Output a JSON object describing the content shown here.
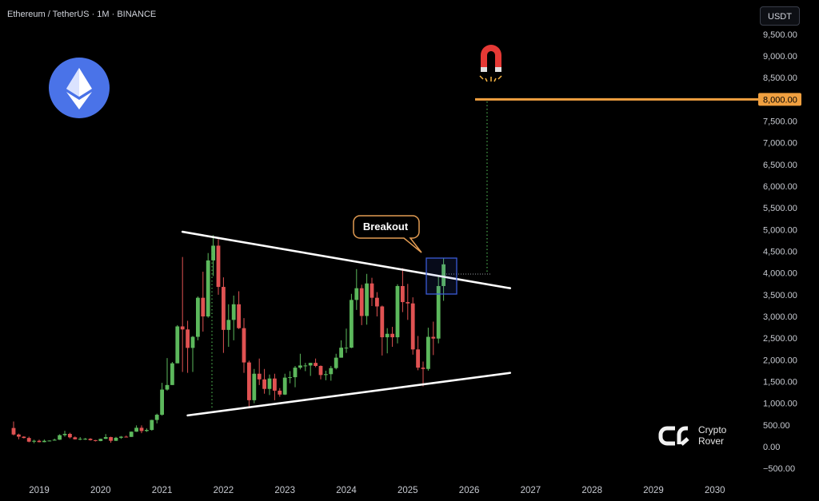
{
  "header": {
    "title": "Ethereum / TetherUS · 1M · BINANCE",
    "currency_button": "USDT"
  },
  "branding": {
    "logo_line1": "Crypto",
    "logo_line2": "Rover",
    "eth_icon": "ethereum-logo-icon",
    "magnet_icon": "magnet-icon"
  },
  "colors": {
    "up": "#5cb85c",
    "down": "#e05252",
    "trendline": "#ffffff",
    "target": "#f0a040",
    "eth_badge": "#4a73e8",
    "breakout_border": "#e39c53",
    "highlight_box": "#3b5bd6",
    "projection": "#4caf50"
  },
  "chart_data": {
    "type": "candlestick",
    "title": "Ethereum / TetherUS · 1M · BINANCE",
    "x_unit": "month",
    "ylim": [
      -750,
      9900
    ],
    "yticks": [
      "9,500.00",
      "9,000.00",
      "8,500.00",
      "7,500.00",
      "7,000.00",
      "6,500.00",
      "6,000.00",
      "5,500.00",
      "5,000.00",
      "4,500.00",
      "4,000.00",
      "3,500.00",
      "3,000.00",
      "2,500.00",
      "2,000.00",
      "1,500.00",
      "1,000.00",
      "500.00",
      "0.00",
      "−500.00"
    ],
    "ytick_values": [
      9500,
      9000,
      8500,
      7500,
      7000,
      6500,
      6000,
      5500,
      5000,
      4500,
      4000,
      3500,
      3000,
      2500,
      2000,
      1500,
      1000,
      500,
      0,
      -500
    ],
    "xticks": [
      "2019",
      "2020",
      "2021",
      "2022",
      "2023",
      "2024",
      "2025",
      "2026",
      "2027",
      "2028",
      "2029",
      "2030"
    ],
    "xtick_values": [
      "2019-01",
      "2020-01",
      "2021-01",
      "2022-01",
      "2023-01",
      "2024-01",
      "2025-01",
      "2026-01",
      "2027-01",
      "2028-01",
      "2029-01",
      "2030-01"
    ],
    "target_level": {
      "value": 8000,
      "label": "8,000.00"
    },
    "annotation": "Breakout",
    "trendlines": [
      {
        "name": "upper",
        "from": [
          "2021-05",
          4950
        ],
        "to": [
          "2026-09",
          3650
        ]
      },
      {
        "name": "lower",
        "from": [
          "2021-06",
          720
        ],
        "to": [
          "2026-09",
          1700
        ]
      }
    ],
    "candles": [
      {
        "t": "2018-08",
        "o": 430,
        "h": 580,
        "l": 260,
        "c": 280
      },
      {
        "t": "2018-09",
        "o": 280,
        "h": 300,
        "l": 170,
        "c": 230
      },
      {
        "t": "2018-10",
        "o": 230,
        "h": 240,
        "l": 190,
        "c": 200
      },
      {
        "t": "2018-11",
        "o": 200,
        "h": 230,
        "l": 100,
        "c": 115
      },
      {
        "t": "2018-12",
        "o": 115,
        "h": 160,
        "l": 80,
        "c": 135
      },
      {
        "t": "2019-01",
        "o": 135,
        "h": 160,
        "l": 100,
        "c": 105
      },
      {
        "t": "2019-02",
        "o": 105,
        "h": 165,
        "l": 100,
        "c": 135
      },
      {
        "t": "2019-03",
        "o": 135,
        "h": 145,
        "l": 125,
        "c": 140
      },
      {
        "t": "2019-04",
        "o": 140,
        "h": 185,
        "l": 140,
        "c": 160
      },
      {
        "t": "2019-05",
        "o": 160,
        "h": 285,
        "l": 155,
        "c": 265
      },
      {
        "t": "2019-06",
        "o": 265,
        "h": 365,
        "l": 230,
        "c": 295
      },
      {
        "t": "2019-07",
        "o": 295,
        "h": 320,
        "l": 190,
        "c": 215
      },
      {
        "t": "2019-08",
        "o": 215,
        "h": 235,
        "l": 165,
        "c": 170
      },
      {
        "t": "2019-09",
        "o": 170,
        "h": 220,
        "l": 150,
        "c": 180
      },
      {
        "t": "2019-10",
        "o": 180,
        "h": 200,
        "l": 155,
        "c": 182
      },
      {
        "t": "2019-11",
        "o": 182,
        "h": 195,
        "l": 140,
        "c": 150
      },
      {
        "t": "2019-12",
        "o": 150,
        "h": 155,
        "l": 120,
        "c": 130
      },
      {
        "t": "2020-01",
        "o": 130,
        "h": 185,
        "l": 125,
        "c": 180
      },
      {
        "t": "2020-02",
        "o": 180,
        "h": 290,
        "l": 175,
        "c": 220
      },
      {
        "t": "2020-03",
        "o": 220,
        "h": 230,
        "l": 90,
        "c": 135
      },
      {
        "t": "2020-04",
        "o": 135,
        "h": 225,
        "l": 130,
        "c": 205
      },
      {
        "t": "2020-05",
        "o": 205,
        "h": 245,
        "l": 180,
        "c": 230
      },
      {
        "t": "2020-06",
        "o": 230,
        "h": 255,
        "l": 215,
        "c": 225
      },
      {
        "t": "2020-07",
        "o": 225,
        "h": 350,
        "l": 225,
        "c": 345
      },
      {
        "t": "2020-08",
        "o": 345,
        "h": 490,
        "l": 340,
        "c": 435
      },
      {
        "t": "2020-09",
        "o": 435,
        "h": 490,
        "l": 310,
        "c": 360
      },
      {
        "t": "2020-10",
        "o": 360,
        "h": 420,
        "l": 340,
        "c": 385
      },
      {
        "t": "2020-11",
        "o": 385,
        "h": 620,
        "l": 370,
        "c": 615
      },
      {
        "t": "2020-12",
        "o": 615,
        "h": 760,
        "l": 535,
        "c": 735
      },
      {
        "t": "2021-01",
        "o": 735,
        "h": 1470,
        "l": 715,
        "c": 1315
      },
      {
        "t": "2021-02",
        "o": 1315,
        "h": 2040,
        "l": 1290,
        "c": 1420
      },
      {
        "t": "2021-03",
        "o": 1420,
        "h": 1950,
        "l": 1420,
        "c": 1920
      },
      {
        "t": "2021-04",
        "o": 1920,
        "h": 2800,
        "l": 1920,
        "c": 2770
      },
      {
        "t": "2021-05",
        "o": 2770,
        "h": 4370,
        "l": 1720,
        "c": 2700
      },
      {
        "t": "2021-06",
        "o": 2700,
        "h": 2900,
        "l": 1700,
        "c": 2275
      },
      {
        "t": "2021-07",
        "o": 2275,
        "h": 2550,
        "l": 1720,
        "c": 2530
      },
      {
        "t": "2021-08",
        "o": 2530,
        "h": 3460,
        "l": 2450,
        "c": 3430
      },
      {
        "t": "2021-09",
        "o": 3430,
        "h": 4030,
        "l": 2650,
        "c": 3000
      },
      {
        "t": "2021-10",
        "o": 3000,
        "h": 4460,
        "l": 2970,
        "c": 4290
      },
      {
        "t": "2021-11",
        "o": 4290,
        "h": 4870,
        "l": 3930,
        "c": 4630
      },
      {
        "t": "2021-12",
        "o": 4630,
        "h": 4780,
        "l": 3500,
        "c": 3680
      },
      {
        "t": "2022-01",
        "o": 3680,
        "h": 3900,
        "l": 2160,
        "c": 2690
      },
      {
        "t": "2022-02",
        "o": 2690,
        "h": 3280,
        "l": 2300,
        "c": 2920
      },
      {
        "t": "2022-03",
        "o": 2920,
        "h": 3480,
        "l": 2450,
        "c": 3280
      },
      {
        "t": "2022-04",
        "o": 3280,
        "h": 3580,
        "l": 2710,
        "c": 2730
      },
      {
        "t": "2022-05",
        "o": 2730,
        "h": 2960,
        "l": 1700,
        "c": 1940
      },
      {
        "t": "2022-06",
        "o": 1940,
        "h": 1980,
        "l": 880,
        "c": 1070
      },
      {
        "t": "2022-07",
        "o": 1070,
        "h": 1790,
        "l": 1000,
        "c": 1680
      },
      {
        "t": "2022-08",
        "o": 1680,
        "h": 2030,
        "l": 1420,
        "c": 1550
      },
      {
        "t": "2022-09",
        "o": 1550,
        "h": 1790,
        "l": 1220,
        "c": 1330
      },
      {
        "t": "2022-10",
        "o": 1330,
        "h": 1660,
        "l": 1190,
        "c": 1570
      },
      {
        "t": "2022-11",
        "o": 1570,
        "h": 1680,
        "l": 1070,
        "c": 1290
      },
      {
        "t": "2022-12",
        "o": 1290,
        "h": 1350,
        "l": 1150,
        "c": 1200
      },
      {
        "t": "2023-01",
        "o": 1200,
        "h": 1680,
        "l": 1190,
        "c": 1590
      },
      {
        "t": "2023-02",
        "o": 1590,
        "h": 1740,
        "l": 1460,
        "c": 1600
      },
      {
        "t": "2023-03",
        "o": 1600,
        "h": 1860,
        "l": 1370,
        "c": 1820
      },
      {
        "t": "2023-04",
        "o": 1820,
        "h": 2140,
        "l": 1780,
        "c": 1870
      },
      {
        "t": "2023-05",
        "o": 1870,
        "h": 1930,
        "l": 1740,
        "c": 1870
      },
      {
        "t": "2023-06",
        "o": 1870,
        "h": 1930,
        "l": 1630,
        "c": 1930
      },
      {
        "t": "2023-07",
        "o": 1930,
        "h": 2030,
        "l": 1830,
        "c": 1860
      },
      {
        "t": "2023-08",
        "o": 1860,
        "h": 1870,
        "l": 1550,
        "c": 1650
      },
      {
        "t": "2023-09",
        "o": 1650,
        "h": 1750,
        "l": 1530,
        "c": 1670
      },
      {
        "t": "2023-10",
        "o": 1670,
        "h": 1860,
        "l": 1520,
        "c": 1810
      },
      {
        "t": "2023-11",
        "o": 1810,
        "h": 2140,
        "l": 1780,
        "c": 2050
      },
      {
        "t": "2023-12",
        "o": 2050,
        "h": 2450,
        "l": 2050,
        "c": 2280
      },
      {
        "t": "2024-01",
        "o": 2280,
        "h": 2720,
        "l": 2160,
        "c": 2280
      },
      {
        "t": "2024-02",
        "o": 2280,
        "h": 3520,
        "l": 2270,
        "c": 3380
      },
      {
        "t": "2024-03",
        "o": 3380,
        "h": 4090,
        "l": 3150,
        "c": 3650
      },
      {
        "t": "2024-04",
        "o": 3650,
        "h": 3730,
        "l": 2800,
        "c": 3010
      },
      {
        "t": "2024-05",
        "o": 3010,
        "h": 3980,
        "l": 2810,
        "c": 3760
      },
      {
        "t": "2024-06",
        "o": 3760,
        "h": 3890,
        "l": 3240,
        "c": 3430
      },
      {
        "t": "2024-07",
        "o": 3430,
        "h": 3560,
        "l": 3000,
        "c": 3230
      },
      {
        "t": "2024-08",
        "o": 3230,
        "h": 3250,
        "l": 2100,
        "c": 2520
      },
      {
        "t": "2024-09",
        "o": 2520,
        "h": 2730,
        "l": 2150,
        "c": 2600
      },
      {
        "t": "2024-10",
        "o": 2600,
        "h": 2760,
        "l": 2300,
        "c": 2520
      },
      {
        "t": "2024-11",
        "o": 2520,
        "h": 3740,
        "l": 2380,
        "c": 3700
      },
      {
        "t": "2024-12",
        "o": 3700,
        "h": 4110,
        "l": 3100,
        "c": 3330
      },
      {
        "t": "2025-01",
        "o": 3330,
        "h": 3750,
        "l": 2920,
        "c": 3300
      },
      {
        "t": "2025-02",
        "o": 3300,
        "h": 3440,
        "l": 2120,
        "c": 2240
      },
      {
        "t": "2025-03",
        "o": 2240,
        "h": 2550,
        "l": 1760,
        "c": 1820
      },
      {
        "t": "2025-04",
        "o": 1820,
        "h": 1960,
        "l": 1390,
        "c": 1790
      },
      {
        "t": "2025-05",
        "o": 1790,
        "h": 2740,
        "l": 1750,
        "c": 2530
      },
      {
        "t": "2025-06",
        "o": 2530,
        "h": 2880,
        "l": 2110,
        "c": 2490
      },
      {
        "t": "2025-07",
        "o": 2490,
        "h": 3940,
        "l": 2380,
        "c": 3700
      },
      {
        "t": "2025-08",
        "o": 3700,
        "h": 4350,
        "l": 3360,
        "c": 4200
      }
    ]
  }
}
